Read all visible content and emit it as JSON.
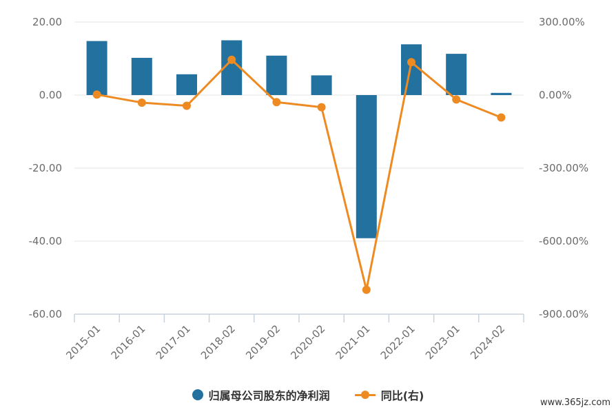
{
  "chart_data": {
    "type": "bar+line",
    "categories": [
      "2015-01",
      "2016-01",
      "2017-01",
      "2018-02",
      "2019-02",
      "2020-02",
      "2021-01",
      "2022-01",
      "2023-01",
      "2024-02"
    ],
    "series": [
      {
        "name": "归属母公司股东的净利润",
        "type": "bar",
        "axis": "left",
        "color": "#22719e",
        "values": [
          14.8,
          10.2,
          5.7,
          15.0,
          10.8,
          5.4,
          -39.2,
          13.9,
          11.3,
          0.6
        ]
      },
      {
        "name": "同比(右)",
        "type": "line",
        "axis": "right",
        "color": "#ee8a22",
        "values": [
          2.0,
          -31.0,
          -44.0,
          145.0,
          -29.0,
          -50.0,
          -800.0,
          135.0,
          -18.0,
          -92.0
        ]
      }
    ],
    "left_axis": {
      "min": -60,
      "max": 20,
      "ticks": [
        "20.00",
        "0.00",
        "-20.00",
        "-40.00",
        "-60.00"
      ],
      "tick_values": [
        20,
        0,
        -20,
        -40,
        -60
      ]
    },
    "right_axis": {
      "min": -900,
      "max": 300,
      "ticks": [
        "300.00%",
        "0.00%",
        "-300.00%",
        "-600.00%",
        "-900.00%"
      ],
      "tick_values": [
        300,
        0,
        -300,
        -600,
        -900
      ]
    },
    "grid": true,
    "legend_position": "bottom-center"
  },
  "watermark": "www.365jz.com"
}
